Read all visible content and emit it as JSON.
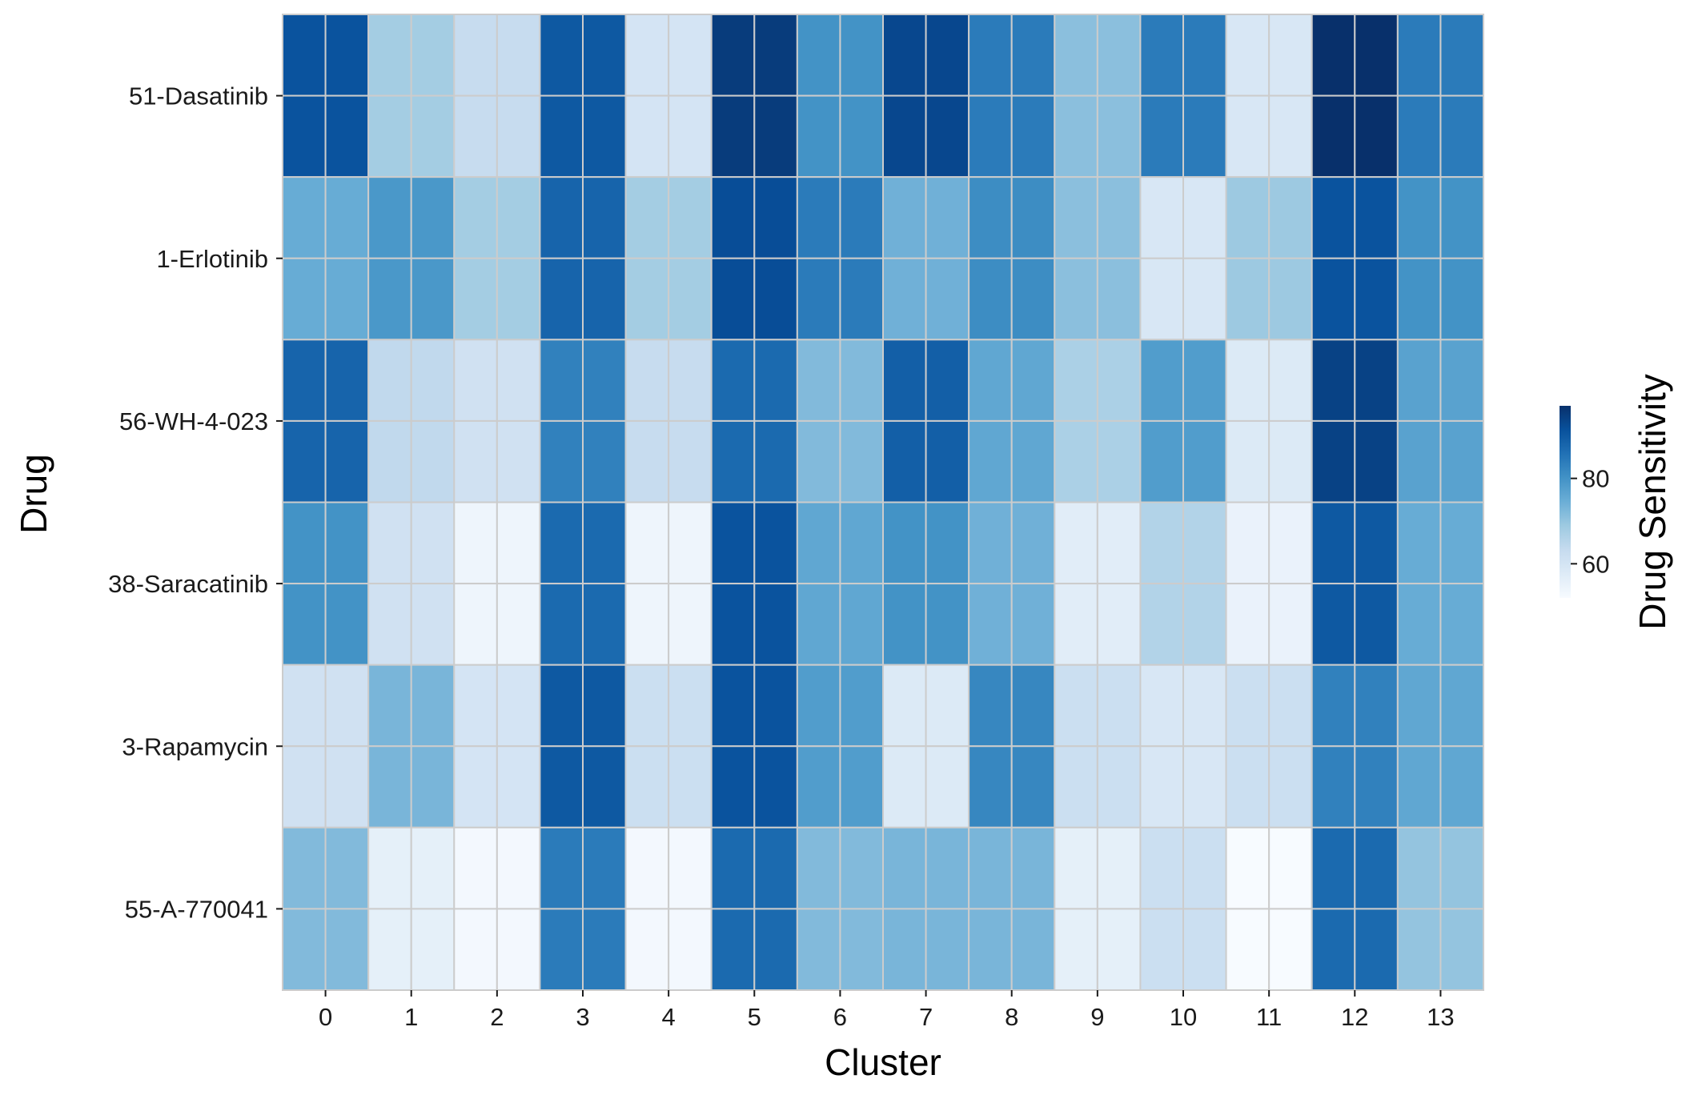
{
  "chart_data": {
    "type": "heatmap",
    "xlabel": "Cluster",
    "ylabel": "Drug",
    "colorbar_label": "Drug Sensitivity",
    "colormap": "Blues",
    "color_range": [
      52,
      97
    ],
    "colorbar_ticks": [
      60,
      80
    ],
    "x_categories": [
      "0",
      "1",
      "2",
      "3",
      "4",
      "5",
      "6",
      "7",
      "8",
      "9",
      "10",
      "11",
      "12",
      "13"
    ],
    "y_categories": [
      "51-Dasatinib",
      "1-Erlotinib",
      "56-WH-4-023",
      "38-Saracatinib",
      "3-Rapamycin",
      "55-A-770041"
    ],
    "values": [
      [
        91,
        68,
        63,
        90,
        60,
        95,
        80,
        93,
        84,
        71,
        84,
        59,
        97,
        84
      ],
      [
        75,
        79,
        68,
        88,
        68,
        92,
        84,
        74,
        81,
        71,
        59,
        69,
        91,
        80
      ],
      [
        88,
        64,
        61,
        83,
        63,
        87,
        72,
        89,
        76,
        67,
        78,
        58,
        94,
        77
      ],
      [
        80,
        61,
        54,
        87,
        54,
        91,
        76,
        80,
        74,
        57,
        66,
        55,
        90,
        75
      ],
      [
        61,
        73,
        60,
        90,
        62,
        91,
        78,
        58,
        82,
        62,
        59,
        62,
        83,
        76
      ],
      [
        72,
        56,
        53,
        84,
        53,
        87,
        72,
        73,
        73,
        56,
        62,
        52,
        87,
        70
      ]
    ]
  }
}
